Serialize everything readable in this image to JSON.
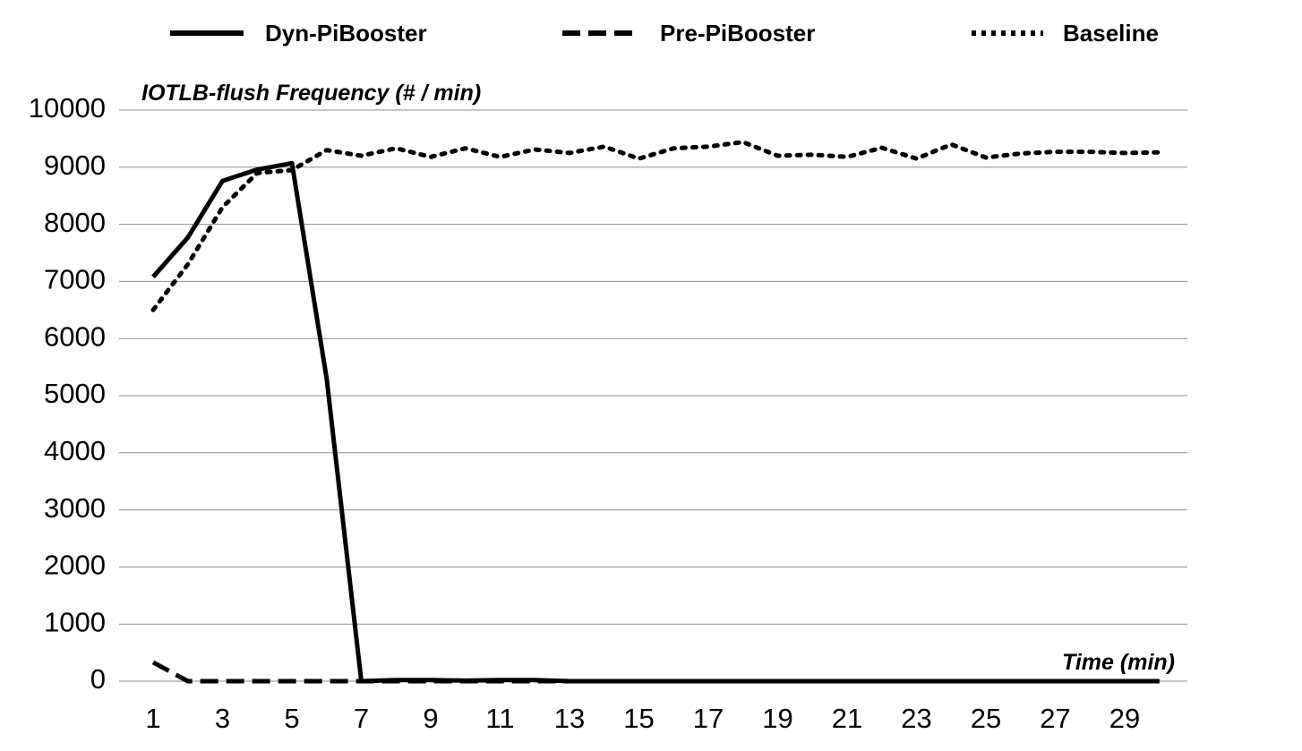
{
  "chart_data": {
    "type": "line",
    "ylabel": "IOTLB-flush Frequency (# / min)",
    "xlabel": "Time (min)",
    "ylim": [
      0,
      10000
    ],
    "yticks": [
      0,
      1000,
      2000,
      3000,
      4000,
      5000,
      6000,
      7000,
      8000,
      9000,
      10000
    ],
    "xlim": [
      1,
      30
    ],
    "xticks": [
      1,
      3,
      5,
      7,
      9,
      11,
      13,
      15,
      17,
      19,
      21,
      23,
      25,
      27,
      29
    ],
    "grid": "horizontal",
    "legend_position": "top",
    "x": [
      1,
      2,
      3,
      4,
      5,
      6,
      7,
      8,
      9,
      10,
      11,
      12,
      13,
      14,
      15,
      16,
      17,
      18,
      19,
      20,
      21,
      22,
      23,
      24,
      25,
      26,
      27,
      28,
      29,
      30
    ],
    "series": [
      {
        "name": "Dyn-PiBooster",
        "style": "solid",
        "color": "#000000",
        "values": [
          7080,
          7770,
          8760,
          8960,
          9070,
          5300,
          0,
          20,
          20,
          10,
          20,
          20,
          0,
          0,
          0,
          0,
          0,
          0,
          0,
          0,
          0,
          0,
          0,
          0,
          0,
          0,
          0,
          0,
          0,
          0
        ]
      },
      {
        "name": "Pre-PiBooster",
        "style": "dashed",
        "color": "#000000",
        "values": [
          330,
          0,
          0,
          0,
          0,
          0,
          0,
          0,
          0,
          0,
          0,
          0,
          0,
          0,
          0,
          0,
          0,
          0,
          0,
          0,
          0,
          0,
          0,
          0,
          0,
          0,
          0,
          0,
          0,
          0
        ]
      },
      {
        "name": "Baseline",
        "style": "dotted",
        "color": "#000000",
        "values": [
          6500,
          7300,
          8300,
          8900,
          8950,
          9300,
          9200,
          9330,
          9180,
          9330,
          9180,
          9310,
          9250,
          9360,
          9150,
          9330,
          9360,
          9440,
          9200,
          9220,
          9180,
          9340,
          9150,
          9400,
          9170,
          9240,
          9270,
          9270,
          9250,
          9260
        ]
      }
    ]
  }
}
